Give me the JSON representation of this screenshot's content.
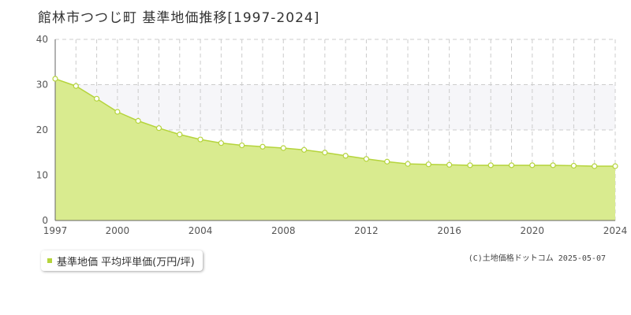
{
  "header": {
    "title": "館林市つつじ町 基準地価推移[1997-2024]"
  },
  "legend": {
    "label": "基準地価 平均坪単価(万円/坪)"
  },
  "footer": {
    "copyright": "(C)土地価格ドットコム 2025-05-07"
  },
  "colors": {
    "fill": "#d9eb8f",
    "line": "#b5d43c",
    "band": "#f6f6f9",
    "marker_fill": "#ffffff",
    "grid": "#cccccc"
  },
  "chart_data": {
    "type": "area",
    "title": "館林市つつじ町 基準地価推移[1997-2024]",
    "xlabel": "",
    "ylabel": "",
    "xlim": [
      1997,
      2024
    ],
    "ylim": [
      0,
      40
    ],
    "y_ticks": [
      0,
      10,
      20,
      30,
      40
    ],
    "x_tick_labels": [
      "1997",
      "2000",
      "2004",
      "2008",
      "2012",
      "2016",
      "2020",
      "2024"
    ],
    "grid": true,
    "legend_position": "bottom-left",
    "series": [
      {
        "name": "基準地価 平均坪単価(万円/坪)",
        "x": [
          1997,
          1998,
          1999,
          2000,
          2001,
          2002,
          2003,
          2004,
          2005,
          2006,
          2007,
          2008,
          2009,
          2010,
          2011,
          2012,
          2013,
          2014,
          2015,
          2016,
          2017,
          2018,
          2019,
          2020,
          2021,
          2022,
          2023,
          2024
        ],
        "values": [
          31.3,
          29.7,
          26.9,
          24.0,
          22.0,
          20.4,
          19.0,
          17.9,
          17.1,
          16.6,
          16.3,
          16.0,
          15.6,
          15.0,
          14.3,
          13.6,
          13.0,
          12.5,
          12.4,
          12.3,
          12.2,
          12.2,
          12.2,
          12.2,
          12.2,
          12.1,
          12.0,
          12.0
        ]
      }
    ]
  }
}
